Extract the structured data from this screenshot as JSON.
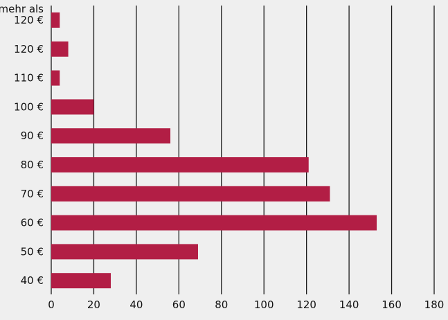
{
  "chart_data": {
    "type": "bar",
    "orientation": "horizontal",
    "categories": [
      [
        "mehr als",
        "120 €"
      ],
      [
        "120 €"
      ],
      [
        "110 €"
      ],
      [
        "100 €"
      ],
      [
        "90 €"
      ],
      [
        "80 €"
      ],
      [
        "70 €"
      ],
      [
        "60 €"
      ],
      [
        "50 €"
      ],
      [
        "40 €"
      ]
    ],
    "values": [
      4,
      8,
      4,
      20,
      56,
      121,
      131,
      153,
      69,
      28
    ],
    "xlim": [
      0,
      180
    ],
    "xticks": [
      "0",
      "20",
      "40",
      "60",
      "80",
      "100",
      "120",
      "140",
      "160",
      "180"
    ],
    "title": "",
    "xlabel": "",
    "ylabel": "",
    "grid": "vertical",
    "bar_color": "#b21e45",
    "background": "#efefef"
  }
}
